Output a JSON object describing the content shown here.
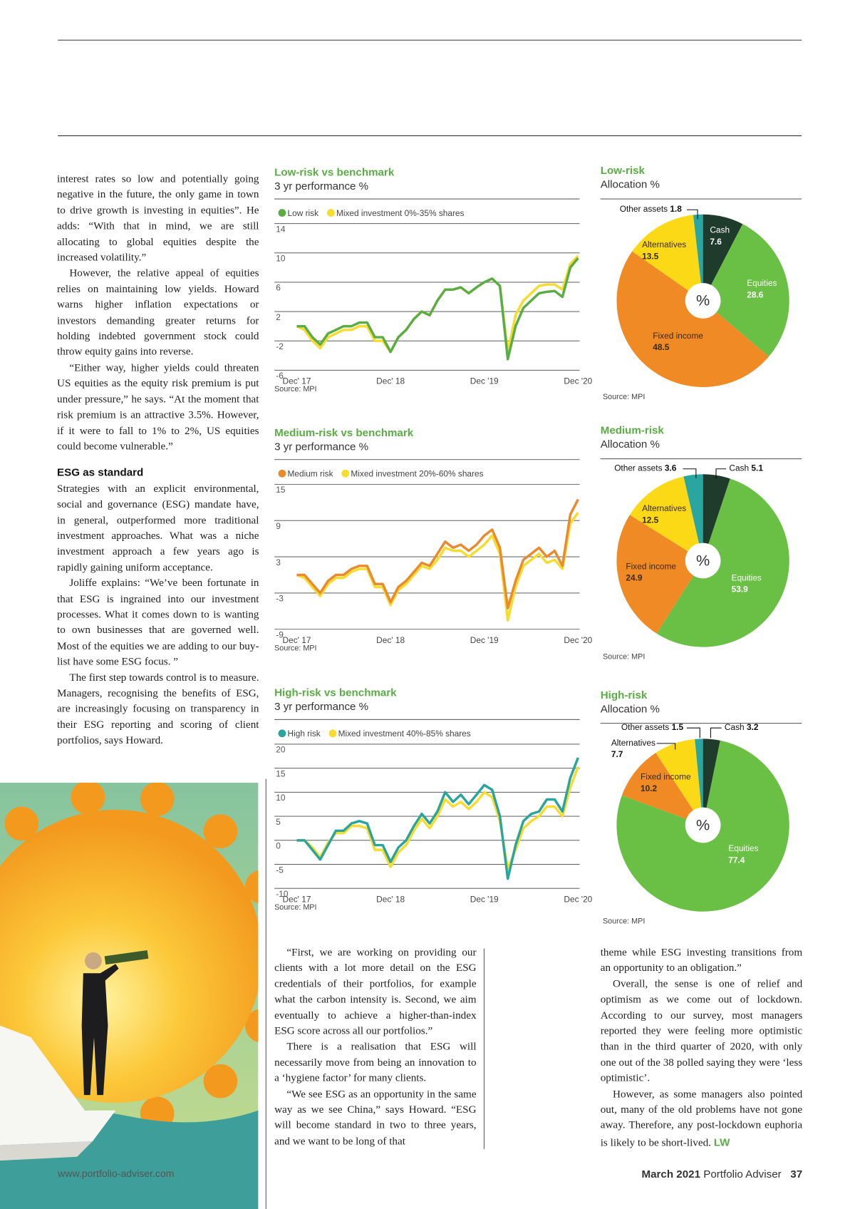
{
  "article": {
    "column_1": [
      "interest rates so low and potentially going negative in the future, the only game in town to drive growth is investing in equities”. He adds: “With that in mind, we are still allocating to global equities despite the increased volatility.”",
      "However, the relative appeal of equities relies on maintaining low yields. Howard warns higher inflation expectations or investors demanding greater returns for holding indebted government stock could throw equity gains into reverse.",
      "“Either way, higher yields could threaten US equities as the equity risk premium is put under pressure,” he says. “At the moment that risk premium is an attractive 3.5%. However, if it were to fall to 1% to 2%, US equities could become vulnerable.”"
    ],
    "heading": "ESG as standard",
    "column_1b": [
      "Strategies with an explicit environmental, social and governance (ESG) mandate have, in general, outperformed more traditional investment approaches. What was a niche investment approach a few years ago is rapidly gaining uniform acceptance.",
      "Joliffe explains: “We’ve been fortunate in that ESG is ingrained into our investment processes. What it comes down to is wanting to own businesses that are governed well. Most of the equities we are adding to our buy-list have some ESG focus. ”",
      "The first step towards control is to measure. Managers, recognising the benefits of ESG, are increasingly focusing on transparency in their ESG reporting and scoring of client portfolios, says Howard."
    ],
    "column_2": [
      "“First, we are working on providing our clients with a lot more detail on the ESG credentials of their portfolios, for example what the carbon intensity is. Second, we aim eventually to achieve a higher-than-index ESG score across all our portfolios.”",
      "There is a realisation that ESG will necessarily move from being an innovation to a ‘hygiene factor’ for many clients.",
      "“We see ESG as an opportunity in the same way as we see China,” says Howard. “ESG will become standard in two to three years, and we want to be long of that"
    ],
    "column_3": [
      "theme while ESG investing transitions from an opportunity to an obligation.”",
      "Overall, the sense is one of relief and optimism as we come out of lockdown. According to our survey, most managers reported they were feeling more optimistic than in the third quarter of 2020, with only one out of the 38 polled saying they were ‘less optimistic’.",
      "However, as some managers also pointed out, many of the old problems have not gone away. Therefore, any post-lockdown euphoria is likely to be short-lived."
    ],
    "sign_off": "LW"
  },
  "footer": {
    "url": "www.portfolio-adviser.com",
    "issue": "March 2021",
    "magazine": "Portfolio Adviser",
    "page": "37"
  },
  "chart_data": [
    {
      "type": "line",
      "title": "Low-risk vs benchmark",
      "subtitle": "3 yr performance %",
      "source": "Source: MPI",
      "categories": [
        "Dec' 17",
        null,
        null,
        null,
        null,
        null,
        null,
        null,
        null,
        null,
        null,
        null,
        "Dec' 18",
        null,
        null,
        null,
        null,
        null,
        null,
        null,
        null,
        null,
        null,
        null,
        "Dec '19",
        null,
        null,
        null,
        null,
        null,
        null,
        null,
        null,
        null,
        null,
        null,
        "Dec '20"
      ],
      "series": [
        {
          "name": "Low risk",
          "color": "#5aac44",
          "values": [
            0,
            0,
            -1.5,
            -2.5,
            -1,
            -0.5,
            0,
            0,
            0.5,
            0.5,
            -1.5,
            -1.5,
            -3.5,
            -1.5,
            -0.5,
            1,
            2,
            1.5,
            3.5,
            5,
            5,
            5.3,
            4.5,
            5.3,
            6,
            6.5,
            5.5,
            -4.5,
            0,
            2.5,
            3.5,
            4.5,
            4.7,
            4.8,
            4,
            8,
            9.3
          ]
        },
        {
          "name": "Mixed investment 0%-35% shares",
          "color": "#f5dc2e",
          "values": [
            0,
            -0.5,
            -2,
            -3,
            -1.5,
            -1,
            -0.5,
            -0.5,
            0,
            0,
            -2,
            -2,
            -3.5,
            -1.5,
            -0.5,
            1,
            2,
            1.5,
            3.5,
            5,
            5,
            5.3,
            4.5,
            5.3,
            6,
            6.5,
            5.5,
            -3.5,
            1.5,
            3.5,
            4.5,
            5.5,
            5.7,
            5.7,
            5,
            8.5,
            9.6
          ]
        }
      ],
      "ylim": [
        -6,
        14
      ],
      "yticks": [
        14,
        10,
        6,
        2,
        -2,
        -6
      ],
      "grid": true
    },
    {
      "type": "pie",
      "title": "Low-risk",
      "subtitle": "Allocation %",
      "source": "Source: MPI",
      "center_label": "%",
      "categories": [
        "Cash",
        "Equities",
        "Fixed income",
        "Alternatives",
        "Other assets"
      ],
      "values": [
        7.6,
        28.6,
        48.5,
        13.5,
        1.8
      ],
      "colors": [
        "#1e3b2c",
        "#6abf45",
        "#f08a24",
        "#fcd917",
        "#2aa6a0"
      ]
    },
    {
      "type": "line",
      "title": "Medium-risk vs benchmark",
      "subtitle": "3 yr performance %",
      "source": "Source: MPI",
      "categories": [
        "Dec' 17",
        null,
        null,
        null,
        null,
        null,
        null,
        null,
        null,
        null,
        null,
        null,
        "Dec' 18",
        null,
        null,
        null,
        null,
        null,
        null,
        null,
        null,
        null,
        null,
        null,
        "Dec '19",
        null,
        null,
        null,
        null,
        null,
        null,
        null,
        null,
        null,
        null,
        null,
        "Dec '20"
      ],
      "series": [
        {
          "name": "Medium risk",
          "color": "#ea8a2e",
          "values": [
            0,
            0,
            -1.5,
            -3,
            -1,
            0,
            0,
            1,
            1.5,
            1.5,
            -1.5,
            -1.5,
            -4.5,
            -2,
            -1,
            0.5,
            2,
            1.5,
            3.5,
            5.5,
            4.5,
            5,
            4,
            5,
            6.5,
            7.5,
            4.5,
            -5.5,
            -1,
            2.5,
            3.5,
            4.5,
            3,
            4,
            1.5,
            10,
            12.5
          ]
        },
        {
          "name": "Mixed investment 20%-60% shares",
          "color": "#f5dc2e",
          "values": [
            0,
            -0.5,
            -2,
            -3.5,
            -1.5,
            -0.5,
            -0.5,
            0.5,
            1,
            1,
            -2,
            -2,
            -5,
            -2.5,
            -1.5,
            0,
            1.5,
            1,
            2.5,
            4.5,
            4,
            4,
            3,
            4,
            5,
            6.5,
            3.5,
            -7.5,
            -2,
            1.5,
            2.5,
            3.5,
            2,
            2.5,
            1,
            8.5,
            10.3
          ]
        }
      ],
      "ylim": [
        -9,
        15
      ],
      "yticks": [
        15,
        9,
        3,
        -3,
        -9
      ],
      "grid": true
    },
    {
      "type": "pie",
      "title": "Medium-risk",
      "subtitle": "Allocation %",
      "source": "Source: MPI",
      "center_label": "%",
      "categories": [
        "Cash",
        "Equities",
        "Fixed income",
        "Alternatives",
        "Other assets"
      ],
      "values": [
        5.1,
        53.9,
        24.9,
        12.5,
        3.6
      ],
      "colors": [
        "#1e3b2c",
        "#6abf45",
        "#f08a24",
        "#fcd917",
        "#2aa6a0"
      ]
    },
    {
      "type": "line",
      "title": "High-risk vs benchmark",
      "subtitle": "3 yr performance %",
      "source": "Source: MPI",
      "categories": [
        "Dec' 17",
        null,
        null,
        null,
        null,
        null,
        null,
        null,
        null,
        null,
        null,
        null,
        "Dec' 18",
        null,
        null,
        null,
        null,
        null,
        null,
        null,
        null,
        null,
        null,
        null,
        "Dec '19",
        null,
        null,
        null,
        null,
        null,
        null,
        null,
        null,
        null,
        null,
        null,
        "Dec '20"
      ],
      "series": [
        {
          "name": "High risk",
          "color": "#2ba59c",
          "values": [
            0,
            0,
            -2,
            -4,
            -1,
            2,
            2,
            3.5,
            4,
            3.5,
            -1,
            -1,
            -4.5,
            -1.5,
            0,
            3,
            5.5,
            3.5,
            6,
            10,
            8,
            9.5,
            7.5,
            9.5,
            11.5,
            10.5,
            5,
            -8,
            -1,
            4,
            5.5,
            6,
            8.5,
            8.5,
            6,
            13,
            17.2
          ]
        },
        {
          "name": "Mixed investment 40%-85% shares",
          "color": "#f5dc2e",
          "values": [
            0,
            0,
            -1.5,
            -3.5,
            -0.5,
            1.5,
            1.5,
            3,
            3,
            2.5,
            -2,
            -2,
            -5.5,
            -2.5,
            -1,
            2,
            4.5,
            2.5,
            5,
            8.5,
            7,
            8,
            6.5,
            8,
            10,
            9,
            4,
            -6,
            -2,
            2.5,
            4,
            5,
            7,
            7,
            5,
            11,
            15.3
          ]
        }
      ],
      "ylim": [
        -10,
        20
      ],
      "yticks": [
        20,
        15,
        10,
        5,
        0,
        -5,
        -10
      ],
      "grid": true
    },
    {
      "type": "pie",
      "title": "High-risk",
      "subtitle": "Allocation %",
      "source": "Source: MPI",
      "center_label": "%",
      "categories": [
        "Cash",
        "Equities",
        "Fixed income",
        "Alternatives",
        "Other assets"
      ],
      "values": [
        3.2,
        77.4,
        10.2,
        7.7,
        1.5
      ],
      "colors": [
        "#1e3b2c",
        "#6abf45",
        "#f08a24",
        "#fcd917",
        "#2aa6a0"
      ]
    }
  ]
}
